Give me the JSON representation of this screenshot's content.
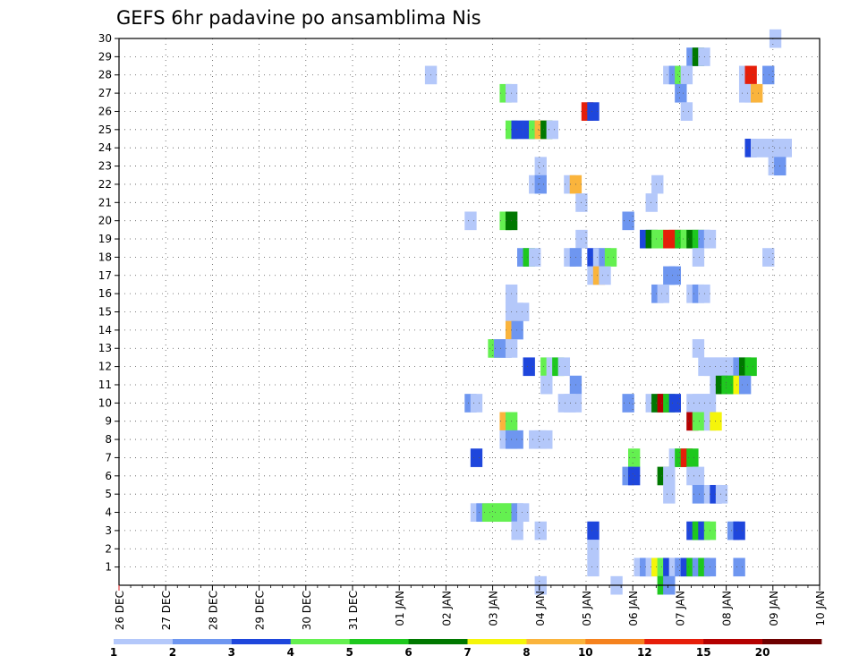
{
  "chart_data": {
    "type": "heatmap",
    "title": "GEFS 6hr padavine po ansamblima Nis",
    "y_ticks": [
      "1",
      "2",
      "3",
      "4",
      "5",
      "6",
      "7",
      "8",
      "9",
      "10",
      "11",
      "12",
      "13",
      "14",
      "15",
      "16",
      "17",
      "18",
      "19",
      "20",
      "21",
      "22",
      "23",
      "24",
      "25",
      "26",
      "27",
      "28",
      "29",
      "30"
    ],
    "x_ticks": [
      "26 DEC",
      "27 DEC",
      "28 DEC",
      "29 DEC",
      "30 DEC",
      "31 DEC",
      "01 JAN",
      "02 JAN",
      "03 JAN",
      "04 JAN",
      "05 JAN",
      "06 JAN",
      "07 JAN",
      "08 JAN",
      "09 JAN",
      "10 JAN"
    ],
    "colorbar": {
      "colors": [
        "#b4c8fa",
        "#6e96f0",
        "#1e46dc",
        "#64f050",
        "#1ec81e",
        "#007800",
        "#f5f50a",
        "#fab43c",
        "#f5821e",
        "#e61e0a",
        "#b40000",
        "#6e0000"
      ],
      "labels": [
        "1",
        "2",
        "3",
        "4",
        "5",
        "6",
        "7",
        "8",
        "10",
        "12",
        "15",
        "20"
      ]
    },
    "cells": [
      [
        30,
        56.7,
        1
      ],
      [
        29,
        49.6,
        2
      ],
      [
        29,
        50.1,
        6
      ],
      [
        29,
        50.6,
        1
      ],
      [
        28,
        27.2,
        1
      ],
      [
        28,
        47.6,
        1
      ],
      [
        28,
        48.1,
        2
      ],
      [
        28,
        48.6,
        4
      ],
      [
        28,
        49.1,
        1
      ],
      [
        28,
        54.1,
        1
      ],
      [
        28,
        54.6,
        10
      ],
      [
        28,
        56.1,
        2
      ],
      [
        27,
        33.6,
        4
      ],
      [
        27,
        34.1,
        1
      ],
      [
        27,
        48.6,
        2
      ],
      [
        27,
        54.1,
        1
      ],
      [
        27,
        54.6,
        1
      ],
      [
        27,
        55.1,
        8
      ],
      [
        26,
        40.6,
        10
      ],
      [
        26,
        41.1,
        3
      ],
      [
        26,
        49.1,
        1
      ],
      [
        25,
        34.1,
        4
      ],
      [
        25,
        34.6,
        3
      ],
      [
        25,
        35.6,
        3
      ],
      [
        25,
        36.1,
        4
      ],
      [
        25,
        36.6,
        8
      ],
      [
        25,
        37.1,
        6
      ],
      [
        25,
        37.6,
        1
      ],
      [
        24,
        54.6,
        3
      ],
      [
        24,
        55.1,
        1
      ],
      [
        24,
        55.6,
        1
      ],
      [
        24,
        56.1,
        1
      ],
      [
        24,
        56.6,
        1
      ],
      [
        24,
        57.1,
        1
      ],
      [
        24,
        57.6,
        1
      ],
      [
        23,
        36.6,
        1
      ],
      [
        23,
        56.6,
        1
      ],
      [
        23,
        57.1,
        2
      ],
      [
        22,
        36.1,
        1
      ],
      [
        22,
        36.6,
        2
      ],
      [
        22,
        39.1,
        1
      ],
      [
        22,
        39.6,
        8
      ],
      [
        22,
        46.6,
        1
      ],
      [
        21,
        40.1,
        1
      ],
      [
        21,
        46.1,
        1
      ],
      [
        20,
        30.6,
        1
      ],
      [
        20,
        33.6,
        4
      ],
      [
        20,
        34.1,
        6
      ],
      [
        20,
        44.1,
        2
      ],
      [
        19,
        40.1,
        1
      ],
      [
        19,
        45.6,
        3
      ],
      [
        19,
        46.1,
        6
      ],
      [
        19,
        46.6,
        4
      ],
      [
        19,
        47.1,
        4
      ],
      [
        19,
        47.6,
        10
      ],
      [
        19,
        48.1,
        10
      ],
      [
        19,
        48.6,
        5
      ],
      [
        19,
        49.1,
        4
      ],
      [
        19,
        49.6,
        6
      ],
      [
        19,
        50.1,
        5
      ],
      [
        19,
        50.6,
        2
      ],
      [
        19,
        51.1,
        1
      ],
      [
        18,
        35.1,
        2
      ],
      [
        18,
        35.6,
        5
      ],
      [
        18,
        36.1,
        1
      ],
      [
        18,
        39.1,
        1
      ],
      [
        18,
        39.6,
        2
      ],
      [
        18,
        41.1,
        3
      ],
      [
        18,
        41.6,
        1
      ],
      [
        18,
        42.1,
        2
      ],
      [
        18,
        42.6,
        4
      ],
      [
        18,
        50.1,
        1
      ],
      [
        18,
        56.1,
        1
      ],
      [
        17,
        41.1,
        1
      ],
      [
        17,
        41.6,
        8
      ],
      [
        17,
        42.1,
        1
      ],
      [
        17,
        47.6,
        2
      ],
      [
        17,
        48.1,
        2
      ],
      [
        16,
        34.1,
        1
      ],
      [
        16,
        46.6,
        2
      ],
      [
        16,
        47.1,
        1
      ],
      [
        16,
        49.6,
        1
      ],
      [
        16,
        50.1,
        2
      ],
      [
        16,
        50.6,
        1
      ],
      [
        15,
        34.1,
        1
      ],
      [
        15,
        34.6,
        1
      ],
      [
        15,
        35.1,
        1
      ],
      [
        14,
        34.1,
        8
      ],
      [
        14,
        34.6,
        2
      ],
      [
        13,
        32.6,
        4
      ],
      [
        13,
        33.1,
        2
      ],
      [
        13,
        33.6,
        2
      ],
      [
        13,
        34.1,
        1
      ],
      [
        13,
        50.1,
        1
      ],
      [
        12,
        35.6,
        3
      ],
      [
        12,
        37.1,
        4
      ],
      [
        12,
        37.6,
        1
      ],
      [
        12,
        38.1,
        5
      ],
      [
        12,
        38.6,
        1
      ],
      [
        12,
        50.6,
        1
      ],
      [
        12,
        51.1,
        1
      ],
      [
        12,
        51.6,
        1
      ],
      [
        12,
        52.1,
        1
      ],
      [
        12,
        52.6,
        1
      ],
      [
        12,
        53.1,
        1
      ],
      [
        12,
        53.6,
        2
      ],
      [
        12,
        54.1,
        6
      ],
      [
        12,
        54.6,
        5
      ],
      [
        11,
        37.1,
        1
      ],
      [
        11,
        39.6,
        2
      ],
      [
        11,
        51.6,
        1
      ],
      [
        11,
        52.1,
        6
      ],
      [
        11,
        52.6,
        5
      ],
      [
        11,
        53.1,
        5
      ],
      [
        11,
        53.6,
        7
      ],
      [
        11,
        54.1,
        2
      ],
      [
        10,
        30.6,
        2
      ],
      [
        10,
        31.1,
        1
      ],
      [
        10,
        38.6,
        1
      ],
      [
        10,
        39.1,
        1
      ],
      [
        10,
        39.6,
        1
      ],
      [
        10,
        44.1,
        2
      ],
      [
        10,
        46.1,
        1
      ],
      [
        10,
        46.6,
        6
      ],
      [
        10,
        47.1,
        11
      ],
      [
        10,
        47.6,
        5
      ],
      [
        10,
        48.1,
        3
      ],
      [
        10,
        49.6,
        1
      ],
      [
        10,
        50.1,
        1
      ],
      [
        10,
        50.6,
        1
      ],
      [
        10,
        51.1,
        1
      ],
      [
        9,
        33.6,
        8
      ],
      [
        9,
        34.1,
        4
      ],
      [
        9,
        49.6,
        11
      ],
      [
        9,
        50.1,
        4
      ],
      [
        9,
        51.1,
        1
      ],
      [
        9,
        51.6,
        7
      ],
      [
        8,
        33.6,
        1
      ],
      [
        8,
        34.1,
        2
      ],
      [
        8,
        34.6,
        2
      ],
      [
        8,
        36.1,
        1
      ],
      [
        8,
        36.6,
        1
      ],
      [
        8,
        37.1,
        1
      ],
      [
        7,
        31.1,
        3
      ],
      [
        7,
        44.6,
        4
      ],
      [
        7,
        48.1,
        1
      ],
      [
        7,
        48.6,
        5
      ],
      [
        7,
        49.1,
        10
      ],
      [
        7,
        49.6,
        5
      ],
      [
        6,
        44.1,
        2
      ],
      [
        6,
        44.6,
        3
      ],
      [
        6,
        47.1,
        6
      ],
      [
        6,
        47.6,
        1
      ],
      [
        6,
        49.6,
        1
      ],
      [
        6,
        50.1,
        1
      ],
      [
        5,
        47.6,
        1
      ],
      [
        5,
        50.1,
        2
      ],
      [
        5,
        51.1,
        1
      ],
      [
        5,
        51.6,
        3
      ],
      [
        5,
        52.1,
        1
      ],
      [
        4,
        31.1,
        1
      ],
      [
        4,
        31.6,
        2
      ],
      [
        4,
        32.1,
        4
      ],
      [
        4,
        32.6,
        4
      ],
      [
        4,
        33.1,
        4
      ],
      [
        4,
        33.6,
        4
      ],
      [
        4,
        34.1,
        4
      ],
      [
        4,
        34.6,
        2
      ],
      [
        4,
        35.1,
        1
      ],
      [
        3,
        34.6,
        1
      ],
      [
        3,
        36.6,
        1
      ],
      [
        3,
        41.1,
        3
      ],
      [
        3,
        49.6,
        3
      ],
      [
        3,
        50.1,
        5
      ],
      [
        3,
        50.6,
        3
      ],
      [
        3,
        51.1,
        4
      ],
      [
        3,
        53.1,
        2
      ],
      [
        3,
        53.6,
        3
      ],
      [
        2,
        41.1,
        1
      ],
      [
        1,
        41.1,
        1
      ],
      [
        1,
        45.1,
        1
      ],
      [
        1,
        45.6,
        2
      ],
      [
        1,
        46.1,
        1
      ],
      [
        1,
        46.6,
        7
      ],
      [
        1,
        47.1,
        4
      ],
      [
        1,
        47.6,
        3
      ],
      [
        1,
        48.1,
        1
      ],
      [
        1,
        48.6,
        2
      ],
      [
        1,
        49.1,
        3
      ],
      [
        1,
        49.6,
        5
      ],
      [
        1,
        50.1,
        2
      ],
      [
        1,
        50.6,
        5
      ],
      [
        1,
        51.1,
        2
      ],
      [
        1,
        53.6,
        2
      ],
      [
        0,
        36.6,
        1
      ],
      [
        0,
        43.1,
        1
      ],
      [
        0,
        47.1,
        5
      ],
      [
        0,
        47.6,
        2
      ]
    ]
  }
}
